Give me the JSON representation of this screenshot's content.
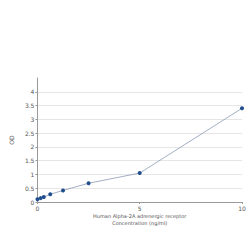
{
  "chart_data": {
    "type": "line",
    "x_label": "Human Alpha-2A adrenergic receptor\nConcentration (ng/ml)",
    "y_label": "OD",
    "x": [
      0,
      0.156,
      0.312,
      0.625,
      1.25,
      2.5,
      5,
      10
    ],
    "values": [
      0.1,
      0.14,
      0.18,
      0.28,
      0.42,
      0.68,
      1.05,
      3.4
    ],
    "color": "#1f4e8c",
    "marker": "circle",
    "xlim": [
      0,
      10
    ],
    "xticks": [
      0,
      5,
      10
    ],
    "ylim": [
      0,
      4.5
    ],
    "yticks": [
      0,
      0.5,
      1,
      1.5,
      2,
      2.5,
      3,
      3.5,
      4
    ],
    "grid": true
  }
}
